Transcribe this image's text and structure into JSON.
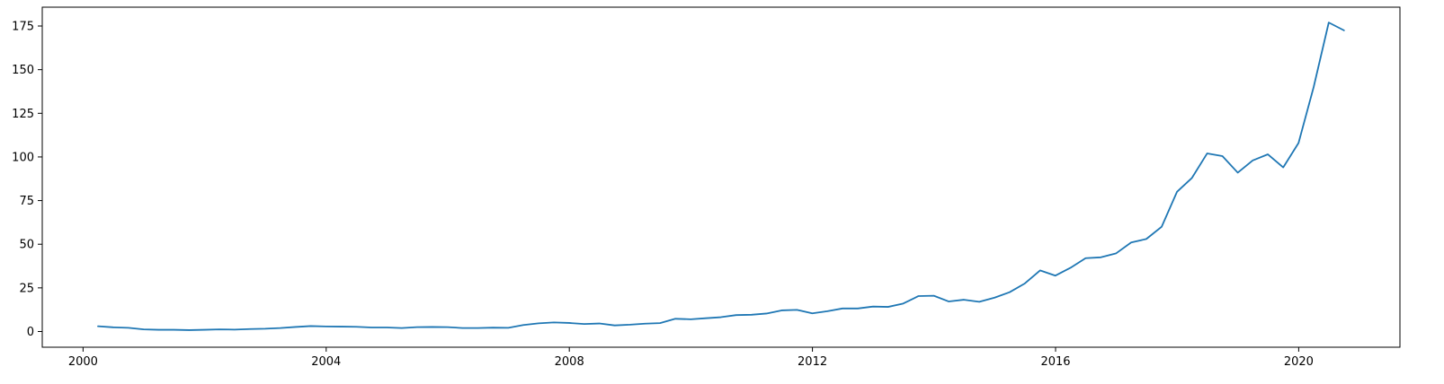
{
  "chart_data": {
    "type": "line",
    "title": "",
    "xlabel": "",
    "ylabel": "",
    "x_axis": {
      "type": "date",
      "range": [
        "1999-05-01",
        "2021-09-01"
      ],
      "ticks": [
        {
          "date": "2000-01-01",
          "label": "2000"
        },
        {
          "date": "2004-01-01",
          "label": "2004"
        },
        {
          "date": "2008-01-01",
          "label": "2008"
        },
        {
          "date": "2012-01-01",
          "label": "2012"
        },
        {
          "date": "2016-01-01",
          "label": "2016"
        },
        {
          "date": "2020-01-01",
          "label": "2020"
        }
      ]
    },
    "y_axis": {
      "range": [
        -9,
        185.8
      ],
      "ticks": [
        {
          "value": 0,
          "label": "0"
        },
        {
          "value": 25,
          "label": "25"
        },
        {
          "value": 50,
          "label": "50"
        },
        {
          "value": 75,
          "label": "75"
        },
        {
          "value": 100,
          "label": "100"
        },
        {
          "value": 125,
          "label": "125"
        },
        {
          "value": 150,
          "label": "150"
        },
        {
          "value": 175,
          "label": "175"
        }
      ]
    },
    "grid": false,
    "colors": {
      "line": "#1f77b4",
      "axes": "#000000"
    },
    "series": [
      {
        "x": [
          "2000-03-31",
          "2000-06-30",
          "2000-09-30",
          "2000-12-31",
          "2001-03-31",
          "2001-06-30",
          "2001-09-30",
          "2001-12-31",
          "2002-03-31",
          "2002-06-30",
          "2002-09-30",
          "2002-12-31",
          "2003-03-31",
          "2003-06-30",
          "2003-09-30",
          "2003-12-31",
          "2004-03-31",
          "2004-06-30",
          "2004-09-30",
          "2004-12-31",
          "2005-03-31",
          "2005-06-30",
          "2005-09-30",
          "2005-12-31",
          "2006-03-31",
          "2006-06-30",
          "2006-09-30",
          "2006-12-31",
          "2007-03-31",
          "2007-06-30",
          "2007-09-30",
          "2007-12-31",
          "2008-03-31",
          "2008-06-30",
          "2008-09-30",
          "2008-12-31",
          "2009-03-31",
          "2009-06-30",
          "2009-09-30",
          "2009-12-31",
          "2010-03-31",
          "2010-06-30",
          "2010-09-30",
          "2010-12-31",
          "2011-03-31",
          "2011-06-30",
          "2011-09-30",
          "2011-12-31",
          "2012-03-31",
          "2012-06-30",
          "2012-09-30",
          "2012-12-31",
          "2013-03-31",
          "2013-06-30",
          "2013-09-30",
          "2013-12-31",
          "2014-03-31",
          "2014-06-30",
          "2014-09-30",
          "2014-12-31",
          "2015-03-31",
          "2015-06-30",
          "2015-09-30",
          "2015-12-31",
          "2016-03-31",
          "2016-06-30",
          "2016-09-30",
          "2016-12-31",
          "2017-03-31",
          "2017-06-30",
          "2017-09-30",
          "2017-12-31",
          "2018-03-31",
          "2018-06-30",
          "2018-09-30",
          "2018-12-31",
          "2019-03-31",
          "2019-06-30",
          "2019-09-30",
          "2019-12-31",
          "2020-03-31",
          "2020-06-30",
          "2020-09-30"
        ],
        "y": [
          3.0,
          2.4,
          2.1,
          1.2,
          1.0,
          1.0,
          0.8,
          1.0,
          1.2,
          1.1,
          1.4,
          1.6,
          2.0,
          2.6,
          3.1,
          2.9,
          2.8,
          2.7,
          2.3,
          2.3,
          2.0,
          2.5,
          2.6,
          2.5,
          2.0,
          2.0,
          2.2,
          2.1,
          3.7,
          4.7,
          5.2,
          4.9,
          4.3,
          4.6,
          3.5,
          3.9,
          4.5,
          4.8,
          7.3,
          7.0,
          7.6,
          8.2,
          9.4,
          9.6,
          10.3,
          12.1,
          12.4,
          10.4,
          11.6,
          13.2,
          13.2,
          14.3,
          14.1,
          16.0,
          20.3,
          20.5,
          17.2,
          18.2,
          17.0,
          19.4,
          22.5,
          27.5,
          35.0,
          32.0,
          36.5,
          42.0,
          42.5,
          44.8,
          51.0,
          53.0,
          60.0,
          80.0,
          88.0,
          102.0,
          100.5,
          91.0,
          98.0,
          101.5,
          94.0,
          108.0,
          140.0,
          177.0,
          172.5
        ]
      }
    ]
  }
}
